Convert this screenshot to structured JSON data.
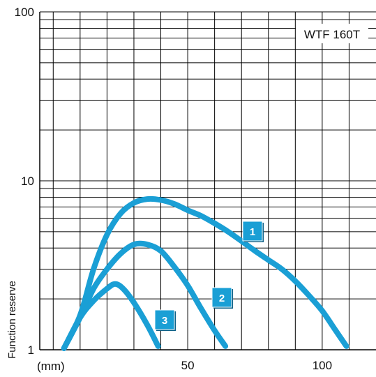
{
  "chart_data": {
    "type": "line",
    "model_label": "WTF 160T",
    "ylabel": "Function reserve",
    "xunit_label": "(mm)",
    "x_ticks": [
      50,
      100
    ],
    "y_ticks": [
      1,
      10,
      100
    ],
    "y_tick_labels": [
      "1",
      "10",
      "100"
    ],
    "x_tick_labels": [
      "50",
      "100"
    ],
    "xlim": [
      -5,
      120
    ],
    "ylim": [
      1,
      100
    ],
    "yscale": "log",
    "grid": true,
    "line_color": "#1a9fd5",
    "badge_color": "#1a9fd5",
    "series": [
      {
        "badge": "1",
        "x": [
          4,
          10,
          15,
          20,
          25,
          30,
          35,
          40,
          45,
          50,
          55,
          60,
          65,
          70,
          75,
          80,
          85,
          90,
          95,
          100,
          105,
          109
        ],
        "y": [
          1.02,
          1.6,
          3.0,
          4.8,
          6.4,
          7.4,
          7.8,
          7.7,
          7.3,
          6.7,
          6.2,
          5.6,
          5.0,
          4.4,
          3.85,
          3.4,
          3.0,
          2.55,
          2.1,
          1.7,
          1.3,
          1.05
        ]
      },
      {
        "badge": "2",
        "x": [
          4,
          10,
          15,
          20,
          25,
          30,
          35,
          40,
          45,
          50,
          55,
          60,
          64
        ],
        "y": [
          1.02,
          1.55,
          2.3,
          3.0,
          3.7,
          4.2,
          4.2,
          3.85,
          3.1,
          2.4,
          1.75,
          1.3,
          1.05
        ]
      },
      {
        "badge": "3",
        "x": [
          4,
          10,
          15,
          20,
          23,
          26,
          30,
          35,
          39
        ],
        "y": [
          1.02,
          1.55,
          1.95,
          2.3,
          2.45,
          2.3,
          1.9,
          1.4,
          1.05
        ]
      }
    ]
  }
}
